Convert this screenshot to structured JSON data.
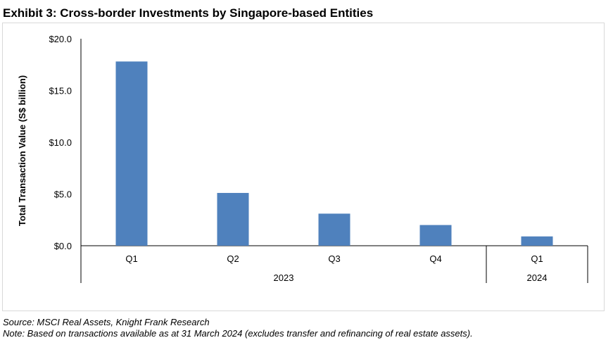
{
  "chart_data": {
    "type": "bar",
    "title": "Exhibit 3: Cross-border Investments by Singapore-based Entities",
    "ylabel": "Total Transaction Value (S$ billion)",
    "xlabel": "",
    "ylim": [
      0,
      20
    ],
    "yticks": [
      "$0.0",
      "$5.0",
      "$10.0",
      "$15.0",
      "$20.0"
    ],
    "ytick_values": [
      0,
      5,
      10,
      15,
      20
    ],
    "categories": [
      "Q1",
      "Q2",
      "Q3",
      "Q4",
      "Q1"
    ],
    "groups": [
      {
        "label": "2023",
        "count": 4
      },
      {
        "label": "2024",
        "count": 1
      }
    ],
    "values": [
      17.8,
      5.1,
      3.1,
      2.0,
      0.9
    ],
    "color": "#4f81bd",
    "grid": false
  },
  "source": "Source: MSCI Real Assets, Knight Frank Research",
  "note": "Note: Based on transactions available as at 31 March 2024 (excludes transfer and refinancing of real estate assets)."
}
